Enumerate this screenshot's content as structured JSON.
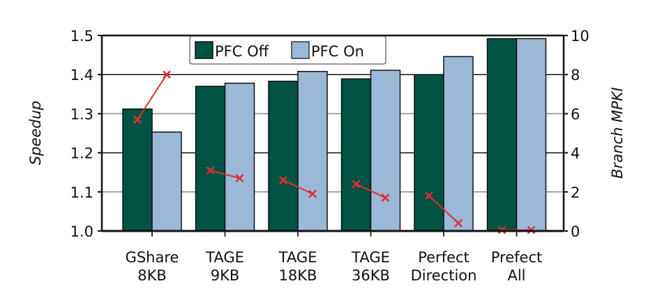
{
  "chart_data": {
    "type": "bar",
    "categories": [
      [
        "GShare",
        "8KB"
      ],
      [
        "TAGE",
        "9KB"
      ],
      [
        "TAGE",
        "18KB"
      ],
      [
        "TAGE",
        "36KB"
      ],
      [
        "Perfect",
        "Direction"
      ],
      [
        "Prefect",
        "All"
      ]
    ],
    "ylabel": "Speedup",
    "y2label": "Branch MPKI",
    "ylim": [
      1.0,
      1.5
    ],
    "y2lim": [
      0,
      10
    ],
    "yticks": [
      "1.0",
      "1.1",
      "1.2",
      "1.3",
      "1.4",
      "1.5"
    ],
    "y2ticks": [
      "0",
      "2",
      "4",
      "6",
      "8",
      "10"
    ],
    "grid": true,
    "legend_position": "top-center",
    "series": [
      {
        "name": "PFC Off",
        "color": "#005343",
        "values": [
          1.312,
          1.37,
          1.383,
          1.389,
          1.4,
          1.492
        ]
      },
      {
        "name": "PFC On",
        "color": "#9bb8d7",
        "values": [
          1.253,
          1.378,
          1.408,
          1.411,
          1.446,
          1.492
        ]
      }
    ],
    "mpki_series": {
      "type": "line",
      "axis": "right",
      "color": "#e03030",
      "marker": "x",
      "values": [
        [
          5.7,
          8.0
        ],
        [
          3.1,
          2.7
        ],
        [
          2.6,
          1.9
        ],
        [
          2.4,
          1.7
        ],
        [
          1.8,
          0.4
        ],
        [
          0.05,
          0.05
        ]
      ]
    }
  }
}
